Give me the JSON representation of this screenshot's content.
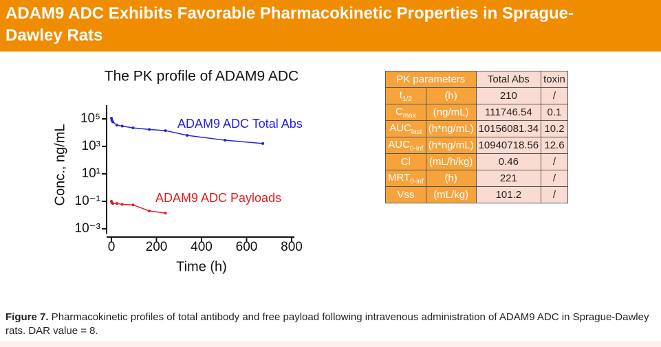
{
  "header": {
    "title": "ADAM9 ADC Exhibits Favorable Pharmacokinetic Properties in Sprague-Dawley Rats"
  },
  "chart_data": {
    "type": "line",
    "title": "The PK profile of ADAM9 ADC",
    "x_label": "Time (h)",
    "y_label": "Conc., ng/mL",
    "log_y": true,
    "xlim": [
      0,
      800
    ],
    "xticks": [
      0,
      200,
      400,
      600,
      800
    ],
    "ylim": [
      0.001,
      1000000
    ],
    "yticks": [
      {
        "value": 0.001,
        "label": "10⁻³"
      },
      {
        "value": 0.1,
        "label": "10⁻¹"
      },
      {
        "value": 10,
        "label": "10¹"
      },
      {
        "value": 1000,
        "label": "10³"
      },
      {
        "value": 100000,
        "label": "10⁵"
      }
    ],
    "series": [
      {
        "name": "ADAM9 ADC Total Abs",
        "color": "#2424d8",
        "x": [
          0.083,
          2,
          6,
          24,
          48,
          96,
          168,
          240,
          336,
          504,
          672
        ],
        "values": [
          111747,
          80000,
          60000,
          35000,
          30000,
          22000,
          17000,
          14000,
          6300,
          2800,
          1600
        ]
      },
      {
        "name": "ADAM9 ADC Payloads",
        "color": "#e01e1e",
        "x": [
          0.083,
          2,
          6,
          24,
          48,
          96,
          168,
          240
        ],
        "values": [
          0.1,
          0.08,
          0.07,
          0.07,
          0.06,
          0.055,
          0.02,
          0.014
        ]
      }
    ]
  },
  "table": {
    "header": [
      "PK parameters",
      "Total Abs",
      "toxin"
    ],
    "rows": [
      [
        {
          "main": "t",
          "sub": "1/2"
        },
        "(h)",
        "210",
        "/"
      ],
      [
        {
          "main": "C",
          "sub": "max"
        },
        "(ng/mL)",
        "111746.54",
        "0.1"
      ],
      [
        {
          "main": "AUC",
          "sub": "last"
        },
        "(h*ng/mL)",
        "10156081.34",
        "10.2"
      ],
      [
        {
          "main": "AUC",
          "sub": "0-inf"
        },
        "(h*ng/mL)",
        "10940718.56",
        "12.6"
      ],
      [
        {
          "main": "Cl",
          "sub": null
        },
        "(mL/h/kg)",
        "0.46",
        "/"
      ],
      [
        {
          "main": "MRT",
          "sub": "0-inf"
        },
        "(h)",
        "221",
        "/"
      ],
      [
        {
          "main": "Vss",
          "sub": null
        },
        "(mL/kg)",
        "101.2",
        "/"
      ]
    ]
  },
  "caption": {
    "label": "Figure 7.",
    "text": " Pharmacokinetic profiles of total antibody and free payload following intravenous administration of ADAM9 ADC in Sprague-Dawley rats. DAR value = 8."
  }
}
